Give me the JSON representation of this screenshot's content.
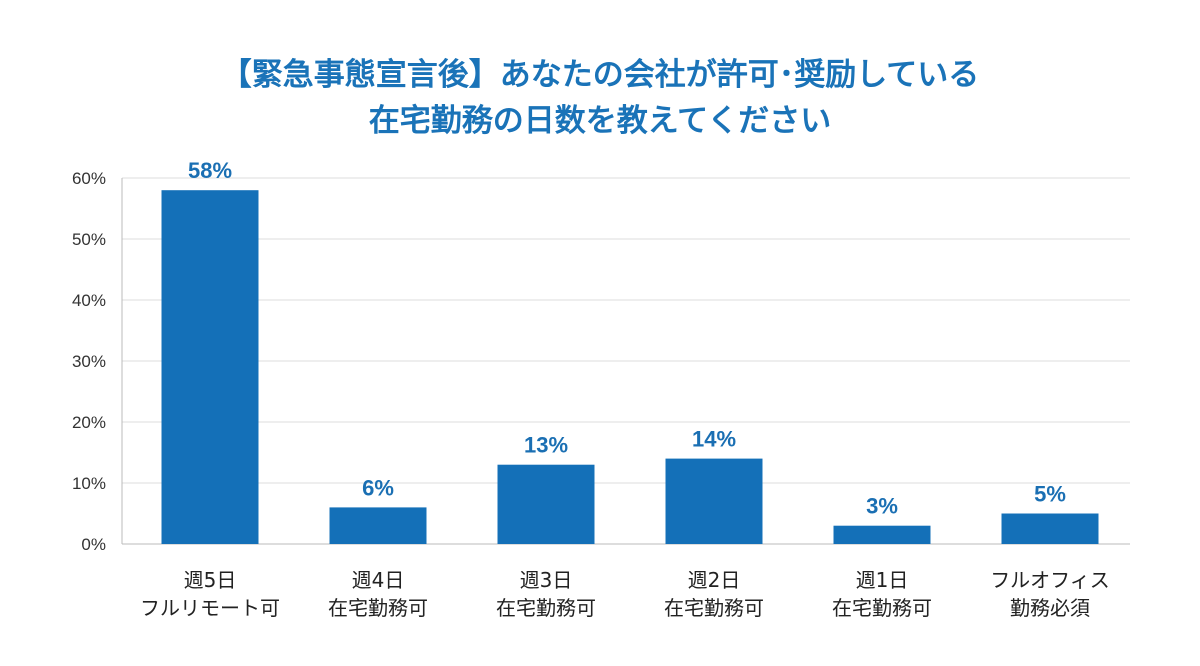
{
  "chart_data": {
    "type": "bar",
    "title_lines": [
      "【緊急事態宣言後】あなたの会社が許可･奨励している",
      "在宅勤務の日数を教えてください"
    ],
    "categories": [
      [
        "週5日",
        "フルリモート可"
      ],
      [
        "週4日",
        "在宅勤務可"
      ],
      [
        "週3日",
        "在宅勤務可"
      ],
      [
        "週2日",
        "在宅勤務可"
      ],
      [
        "週1日",
        "在宅勤務可"
      ],
      [
        "フルオフィス",
        "勤務必須"
      ]
    ],
    "values": [
      58,
      6,
      13,
      14,
      3,
      5
    ],
    "value_labels": [
      "58%",
      "6%",
      "13%",
      "14%",
      "3%",
      "5%"
    ],
    "ylim": [
      0,
      60
    ],
    "yticks": [
      0,
      10,
      20,
      30,
      40,
      50,
      60
    ],
    "ytick_labels": [
      "0%",
      "10%",
      "20%",
      "30%",
      "40%",
      "50%",
      "60%"
    ],
    "grid": true,
    "xlabel": "",
    "ylabel": "",
    "colors": {
      "bar": "#1470b8",
      "title": "#1a73b8",
      "value_label": "#1a6fb3",
      "grid": "#dddddd",
      "axis": "#bbbbbb"
    }
  }
}
